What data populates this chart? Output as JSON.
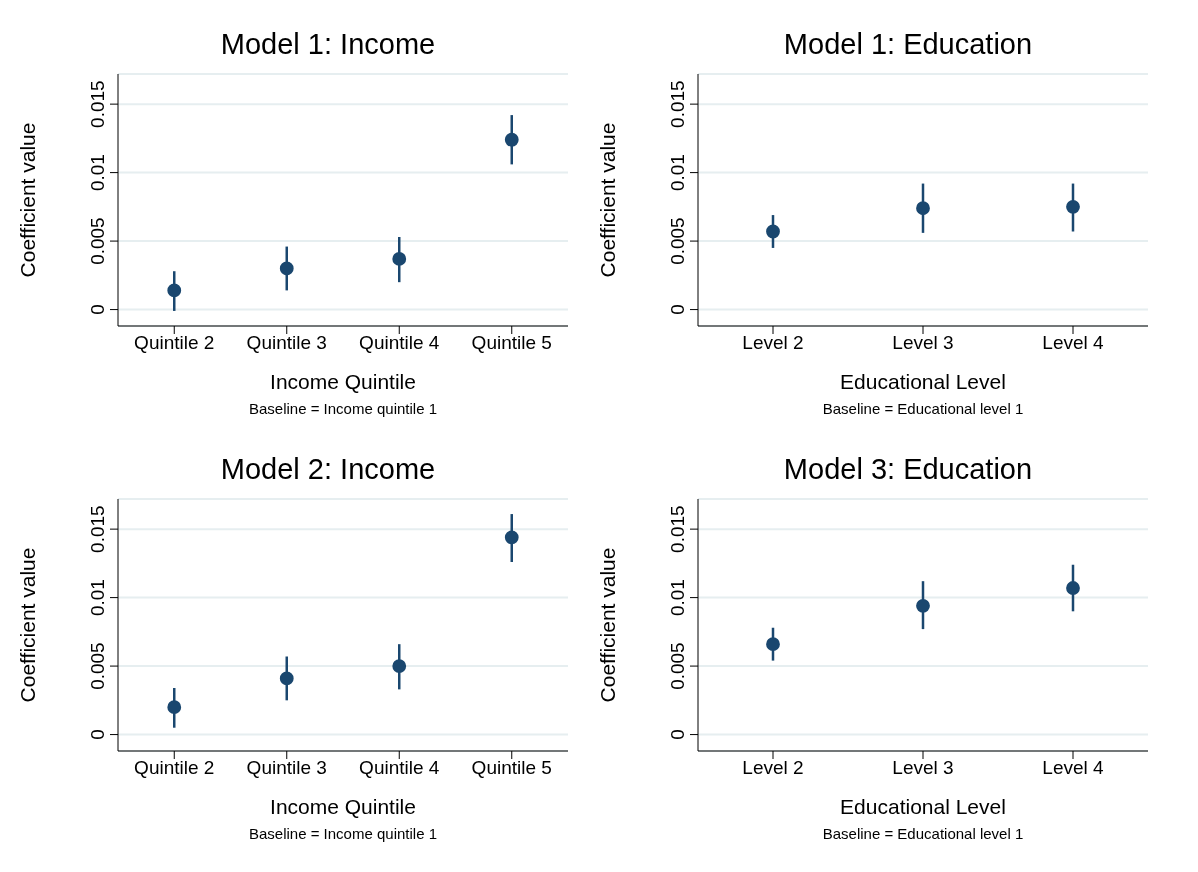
{
  "chart_data": [
    {
      "type": "scatter",
      "title": "Model 1: Income",
      "xlabel": "Income Quintile",
      "ylabel": "Coefficient value",
      "annotations": [
        "Baseline = Income quintile 1"
      ],
      "categories": [
        "Quintile 2",
        "Quintile 3",
        "Quintile 4",
        "Quintile 5"
      ],
      "series": [
        {
          "color": "#1a476f",
          "values": [
            0.0014,
            0.003,
            0.0037,
            0.0124
          ],
          "errors": [
            [
              -0.0001,
              0.0028
            ],
            [
              0.0014,
              0.0046
            ],
            [
              0.002,
              0.0053
            ],
            [
              0.0106,
              0.0142
            ]
          ]
        }
      ],
      "ylim": [
        -0.0012,
        0.0172
      ],
      "yticks": [
        0,
        0.005,
        0.01,
        0.015
      ],
      "grid": "y",
      "marker": "circle",
      "legend": false
    },
    {
      "type": "scatter",
      "title": "Model 1: Education",
      "xlabel": "Educational Level",
      "ylabel": "Coefficient value",
      "annotations": [
        "Baseline = Educational level 1"
      ],
      "categories": [
        "Level 2",
        "Level 3",
        "Level 4"
      ],
      "series": [
        {
          "color": "#1a476f",
          "values": [
            0.0057,
            0.0074,
            0.0075
          ],
          "errors": [
            [
              0.0045,
              0.0069
            ],
            [
              0.0056,
              0.0092
            ],
            [
              0.0057,
              0.0092
            ]
          ]
        }
      ],
      "ylim": [
        -0.0012,
        0.0172
      ],
      "yticks": [
        0,
        0.005,
        0.01,
        0.015
      ],
      "grid": "y",
      "marker": "circle",
      "legend": false
    },
    {
      "type": "scatter",
      "title": "Model 2: Income",
      "xlabel": "Income Quintile",
      "ylabel": "Coefficient value",
      "annotations": [
        "Baseline = Income quintile 1"
      ],
      "categories": [
        "Quintile 2",
        "Quintile 3",
        "Quintile 4",
        "Quintile 5"
      ],
      "series": [
        {
          "color": "#1a476f",
          "values": [
            0.002,
            0.0041,
            0.005,
            0.0144
          ],
          "errors": [
            [
              0.0005,
              0.0034
            ],
            [
              0.0025,
              0.0057
            ],
            [
              0.0033,
              0.0066
            ],
            [
              0.0126,
              0.0161
            ]
          ]
        }
      ],
      "ylim": [
        -0.0012,
        0.0172
      ],
      "yticks": [
        0,
        0.005,
        0.01,
        0.015
      ],
      "grid": "y",
      "marker": "circle",
      "legend": false
    },
    {
      "type": "scatter",
      "title": "Model 3: Education",
      "xlabel": "Educational Level",
      "ylabel": "Coefficient value",
      "annotations": [
        "Baseline = Educational level 1"
      ],
      "categories": [
        "Level 2",
        "Level 3",
        "Level 4"
      ],
      "series": [
        {
          "color": "#1a476f",
          "values": [
            0.0066,
            0.0094,
            0.0107
          ],
          "errors": [
            [
              0.0054,
              0.0078
            ],
            [
              0.0077,
              0.0112
            ],
            [
              0.009,
              0.0124
            ]
          ]
        }
      ],
      "ylim": [
        -0.0012,
        0.0172
      ],
      "yticks": [
        0,
        0.005,
        0.01,
        0.015
      ],
      "grid": "y",
      "marker": "circle",
      "legend": false
    }
  ]
}
